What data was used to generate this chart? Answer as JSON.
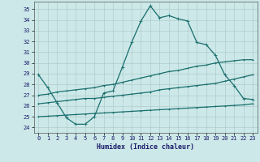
{
  "xlabel": "Humidex (Indice chaleur)",
  "background_color": "#cce8e8",
  "grid_color": "#b0cccc",
  "line_color": "#1a6e6e",
  "xlim": [
    -0.5,
    23.5
  ],
  "ylim": [
    23.5,
    35.7
  ],
  "xticks": [
    0,
    1,
    2,
    3,
    4,
    5,
    6,
    7,
    8,
    9,
    10,
    11,
    12,
    13,
    14,
    15,
    16,
    17,
    18,
    19,
    20,
    21,
    22,
    23
  ],
  "yticks": [
    24,
    25,
    26,
    27,
    28,
    29,
    30,
    31,
    32,
    33,
    34,
    35
  ],
  "series1_x": [
    0,
    1,
    2,
    3,
    4,
    5,
    6,
    7,
    8,
    9,
    10,
    11,
    12,
    13,
    14,
    15,
    16,
    17,
    18,
    19,
    20,
    21,
    22,
    23
  ],
  "series1_y": [
    28.9,
    27.7,
    26.3,
    24.9,
    24.3,
    24.3,
    25.0,
    27.2,
    27.4,
    29.6,
    31.9,
    33.9,
    35.3,
    34.2,
    34.4,
    34.1,
    33.9,
    31.9,
    31.7,
    30.7,
    28.9,
    27.9,
    26.7,
    26.6
  ],
  "series2_x": [
    0,
    1,
    2,
    3,
    4,
    5,
    6,
    7,
    8,
    9,
    10,
    11,
    12,
    13,
    14,
    15,
    16,
    17,
    18,
    19,
    20,
    21,
    22,
    23
  ],
  "series2_y": [
    27.0,
    27.1,
    27.3,
    27.4,
    27.5,
    27.6,
    27.7,
    27.9,
    28.0,
    28.2,
    28.4,
    28.6,
    28.8,
    29.0,
    29.2,
    29.3,
    29.5,
    29.7,
    29.8,
    30.0,
    30.1,
    30.2,
    30.3,
    30.3
  ],
  "series3_x": [
    0,
    1,
    2,
    3,
    4,
    5,
    6,
    7,
    8,
    9,
    10,
    11,
    12,
    13,
    14,
    15,
    16,
    17,
    18,
    19,
    20,
    21,
    22,
    23
  ],
  "series3_y": [
    26.2,
    26.3,
    26.4,
    26.5,
    26.6,
    26.7,
    26.7,
    26.8,
    26.9,
    27.0,
    27.1,
    27.2,
    27.3,
    27.5,
    27.6,
    27.7,
    27.8,
    27.9,
    28.0,
    28.1,
    28.3,
    28.5,
    28.7,
    28.9
  ],
  "series4_x": [
    0,
    1,
    2,
    3,
    4,
    5,
    6,
    7,
    8,
    9,
    10,
    11,
    12,
    13,
    14,
    15,
    16,
    17,
    18,
    19,
    20,
    21,
    22,
    23
  ],
  "series4_y": [
    25.0,
    25.05,
    25.1,
    25.15,
    25.2,
    25.25,
    25.3,
    25.35,
    25.4,
    25.45,
    25.5,
    25.55,
    25.6,
    25.65,
    25.7,
    25.75,
    25.8,
    25.85,
    25.9,
    25.95,
    26.0,
    26.05,
    26.1,
    26.2
  ],
  "marker_size": 2.0,
  "line_width": 0.9
}
